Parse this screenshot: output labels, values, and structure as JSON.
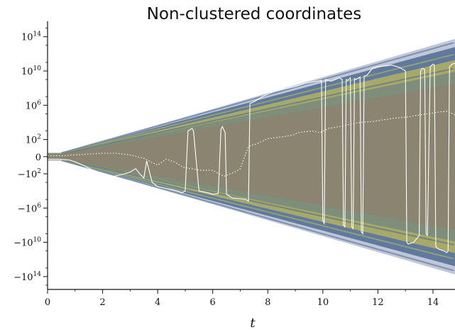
{
  "chart_data": {
    "type": "line",
    "title": "Non-clustered coordinates",
    "xlabel": "t",
    "ylabel": "",
    "xlim": [
      0,
      14.8
    ],
    "ylim_log10_signed": [
      -15.5,
      15.8
    ],
    "y_scale": "symlog",
    "x_ticks": [
      "0",
      "2",
      "4",
      "6",
      "8",
      "10",
      "12",
      "14"
    ],
    "y_ticks": [
      {
        "value": 14,
        "base": "10",
        "exp": "14",
        "sign": ""
      },
      {
        "value": 10,
        "base": "10",
        "exp": "10",
        "sign": ""
      },
      {
        "value": 6,
        "base": "10",
        "exp": "6",
        "sign": ""
      },
      {
        "value": 2,
        "base": "10",
        "exp": "2",
        "sign": ""
      },
      {
        "value": 0,
        "base": "0",
        "exp": "",
        "sign": ""
      },
      {
        "value": -2,
        "base": "10",
        "exp": "2",
        "sign": "−"
      },
      {
        "value": -6,
        "base": "10",
        "exp": "6",
        "sign": "−"
      },
      {
        "value": -10,
        "base": "10",
        "exp": "10",
        "sign": "−"
      },
      {
        "value": -14,
        "base": "10",
        "exp": "14",
        "sign": "−"
      }
    ],
    "grid": false,
    "legend": "none",
    "colors": {
      "envelope_outer": "#a9b4cb",
      "band_blue": "#4f6c93",
      "band_yellow": "#b8b55a",
      "core": "#8a8471",
      "highlight": "#ffffff"
    },
    "series": [
      {
        "style": "solid",
        "x": [
          0,
          0.4,
          0.8,
          1.0,
          1.3,
          1.6,
          2.0,
          2.4,
          2.8,
          3.0,
          3.2,
          3.35,
          3.5,
          3.6,
          3.8,
          4.0,
          4.3,
          4.6,
          4.9,
          5.0,
          5.1,
          5.25,
          5.3,
          5.5,
          5.8,
          6.0,
          6.2,
          6.3,
          6.35,
          6.45,
          6.5,
          6.7,
          7.0,
          7.2,
          7.3,
          7.35,
          7.5,
          7.8,
          8.2,
          8.6,
          9.0,
          9.4,
          9.8,
          9.95,
          10.0,
          10.05,
          10.1,
          10.3,
          10.6,
          10.7,
          10.75,
          10.8,
          10.85,
          10.9,
          11.0,
          11.05,
          11.1,
          11.15,
          11.2,
          11.35,
          11.4,
          11.45,
          11.5,
          11.6,
          11.8,
          12.0,
          12.3,
          12.5,
          12.8,
          13.0,
          13.05,
          13.1,
          13.3,
          13.5,
          13.55,
          13.6,
          13.7,
          13.75,
          13.8,
          13.9,
          14.0,
          14.05,
          14.1,
          14.2,
          14.4,
          14.5,
          14.55,
          14.6,
          14.7,
          14.8
        ],
        "y": [
          -0.3,
          -0.3,
          -0.4,
          -0.6,
          -1.0,
          -1.5,
          -2.0,
          -2.3,
          -2.0,
          -1.8,
          -1.4,
          -2.0,
          -2.5,
          -0.5,
          -3.0,
          -3.5,
          -3.7,
          -3.9,
          -4.2,
          -4.0,
          3.0,
          3.3,
          3.0,
          -4.0,
          -4.2,
          -4.4,
          -4.3,
          3.2,
          3.5,
          2.8,
          -4.4,
          -4.8,
          -4.9,
          -5.0,
          -5.2,
          6.2,
          6.4,
          7.0,
          7.6,
          7.9,
          8.2,
          8.6,
          8.8,
          8.9,
          -7.5,
          -7.8,
          9.0,
          8.8,
          9.2,
          9.0,
          -8.0,
          -8.2,
          9.0,
          8.9,
          9.2,
          -8.2,
          -8.4,
          9.1,
          9.0,
          9.3,
          -8.8,
          -9.0,
          9.4,
          9.5,
          10.3,
          10.5,
          10.6,
          10.7,
          10.4,
          10.0,
          -10.0,
          -10.2,
          -10.0,
          -9.2,
          10.0,
          10.3,
          10.2,
          -9.0,
          -9.2,
          10.5,
          10.8,
          10.7,
          -10.5,
          -10.8,
          -11.0,
          -11.2,
          -11.0,
          10.5,
          10.8,
          10.9
        ]
      },
      {
        "style": "dotted",
        "x": [
          0,
          0.5,
          1.0,
          1.5,
          2.0,
          2.5,
          3.0,
          3.5,
          4.0,
          4.3,
          4.6,
          4.9,
          5.2,
          5.6,
          6.0,
          6.4,
          6.8,
          7.0,
          7.3,
          7.6,
          8.0,
          8.5,
          8.9,
          9.1,
          9.3,
          9.6,
          9.9,
          10.2,
          10.6,
          11.0,
          11.4,
          11.8,
          12.2,
          12.6,
          13.0,
          13.4,
          13.8,
          14.2,
          14.5,
          14.8
        ],
        "y": [
          0.1,
          0.1,
          0.2,
          0.3,
          0.4,
          0.4,
          0.2,
          -0.2,
          -1.0,
          -0.3,
          -0.6,
          -1.2,
          -1.4,
          -1.6,
          -1.6,
          -2.3,
          -1.8,
          -1.4,
          1.2,
          1.5,
          2.1,
          2.3,
          2.5,
          2.8,
          2.9,
          3.0,
          2.8,
          3.3,
          3.5,
          3.8,
          4.0,
          4.1,
          4.3,
          4.5,
          4.6,
          4.8,
          5.0,
          5.2,
          5.3,
          4.9
        ]
      }
    ]
  }
}
